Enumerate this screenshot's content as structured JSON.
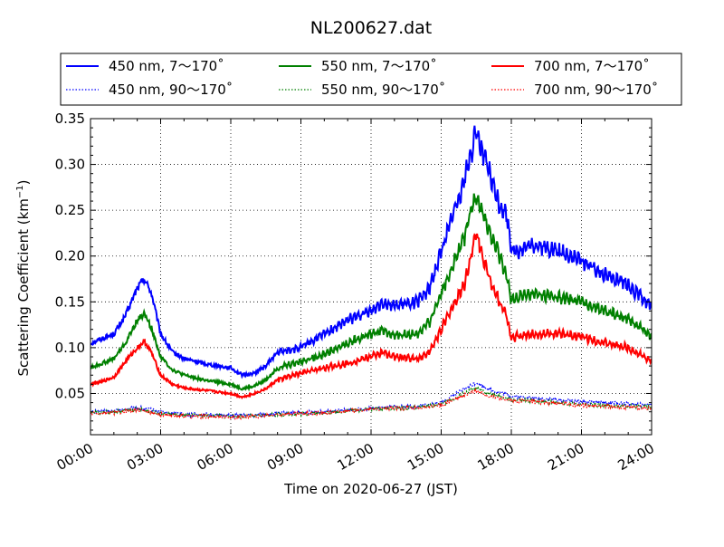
{
  "chart_data": {
    "type": "line",
    "title": "NL200627.dat",
    "xlabel": "Time on 2020-06-27 (JST)",
    "ylabel": "Scattering Coefficient (km",
    "ylabel_exp": "−1",
    "ylabel_close": ")",
    "xlim": [
      0,
      24
    ],
    "ylim": [
      0.005,
      0.35
    ],
    "x_ticks": [
      {
        "value": 0,
        "label": "00:00"
      },
      {
        "value": 3,
        "label": "03:00"
      },
      {
        "value": 6,
        "label": "06:00"
      },
      {
        "value": 9,
        "label": "09:00"
      },
      {
        "value": 12,
        "label": "12:00"
      },
      {
        "value": 15,
        "label": "15:00"
      },
      {
        "value": 18,
        "label": "18:00"
      },
      {
        "value": 21,
        "label": "21:00"
      },
      {
        "value": 24,
        "label": "24:00"
      }
    ],
    "y_ticks": [
      {
        "value": 0.05,
        "label": "0.05"
      },
      {
        "value": 0.1,
        "label": "0.10"
      },
      {
        "value": 0.15,
        "label": "0.15"
      },
      {
        "value": 0.2,
        "label": "0.20"
      },
      {
        "value": 0.25,
        "label": "0.25"
      },
      {
        "value": 0.3,
        "label": "0.30"
      },
      {
        "value": 0.35,
        "label": "0.35"
      }
    ],
    "grid": true,
    "legend_position": "top",
    "series": [
      {
        "name": "450 nm, 7～170˚",
        "color": "#0000ff",
        "style": "solid",
        "x": [
          0,
          0.5,
          1,
          1.5,
          2,
          2.3,
          2.6,
          3,
          3.5,
          4,
          5,
          6,
          6.5,
          7,
          7.5,
          8,
          9,
          10,
          11,
          12,
          12.5,
          13,
          14,
          14.5,
          15,
          15.5,
          16,
          16.5,
          17,
          17.5,
          17.8,
          18,
          18.2,
          19,
          20,
          21,
          22,
          23,
          24
        ],
        "values": [
          0.105,
          0.11,
          0.115,
          0.135,
          0.165,
          0.175,
          0.16,
          0.115,
          0.095,
          0.088,
          0.082,
          0.078,
          0.07,
          0.072,
          0.08,
          0.095,
          0.1,
          0.115,
          0.13,
          0.14,
          0.15,
          0.146,
          0.15,
          0.165,
          0.205,
          0.245,
          0.285,
          0.335,
          0.295,
          0.255,
          0.245,
          0.21,
          0.205,
          0.212,
          0.205,
          0.195,
          0.18,
          0.168,
          0.145
        ]
      },
      {
        "name": "550 nm, 7～170˚",
        "color": "#008000",
        "style": "solid",
        "x": [
          0,
          0.5,
          1,
          1.5,
          2,
          2.3,
          2.6,
          3,
          3.5,
          4,
          5,
          6,
          6.5,
          7,
          7.5,
          8,
          9,
          10,
          11,
          12,
          12.5,
          13,
          14,
          14.5,
          15,
          15.5,
          16,
          16.5,
          17,
          17.5,
          17.8,
          18,
          18.2,
          19,
          20,
          21,
          22,
          23,
          24
        ],
        "values": [
          0.078,
          0.083,
          0.088,
          0.105,
          0.13,
          0.137,
          0.122,
          0.09,
          0.076,
          0.07,
          0.064,
          0.06,
          0.055,
          0.058,
          0.065,
          0.078,
          0.085,
          0.093,
          0.105,
          0.115,
          0.12,
          0.113,
          0.115,
          0.128,
          0.16,
          0.19,
          0.222,
          0.268,
          0.23,
          0.2,
          0.178,
          0.15,
          0.155,
          0.158,
          0.155,
          0.15,
          0.14,
          0.132,
          0.112
        ]
      },
      {
        "name": "700 nm, 7～170˚",
        "color": "#ff0000",
        "style": "solid",
        "x": [
          0,
          0.5,
          1,
          1.5,
          2,
          2.3,
          2.6,
          3,
          3.5,
          4,
          5,
          6,
          6.5,
          7,
          7.5,
          8,
          9,
          10,
          11,
          12,
          12.5,
          13,
          14,
          14.5,
          15,
          15.5,
          16,
          16.5,
          17,
          17.5,
          17.8,
          18,
          18.2,
          19,
          20,
          21,
          22,
          23,
          24
        ],
        "values": [
          0.06,
          0.063,
          0.068,
          0.085,
          0.1,
          0.107,
          0.095,
          0.07,
          0.06,
          0.056,
          0.053,
          0.05,
          0.046,
          0.05,
          0.055,
          0.065,
          0.072,
          0.078,
          0.083,
          0.09,
          0.095,
          0.09,
          0.088,
          0.095,
          0.12,
          0.145,
          0.17,
          0.225,
          0.18,
          0.15,
          0.135,
          0.11,
          0.112,
          0.115,
          0.115,
          0.112,
          0.105,
          0.1,
          0.085
        ]
      },
      {
        "name": "450 nm, 90～170˚",
        "color": "#0000ff",
        "style": "dotted",
        "x": [
          0,
          1,
          2,
          3,
          4,
          5,
          6,
          7,
          8,
          9,
          10,
          11,
          12,
          13,
          14,
          15,
          16,
          16.5,
          17,
          18,
          19,
          20,
          21,
          22,
          23,
          24
        ],
        "values": [
          0.03,
          0.031,
          0.035,
          0.03,
          0.027,
          0.027,
          0.026,
          0.026,
          0.028,
          0.029,
          0.03,
          0.032,
          0.034,
          0.035,
          0.036,
          0.04,
          0.055,
          0.062,
          0.055,
          0.047,
          0.045,
          0.043,
          0.041,
          0.04,
          0.039,
          0.037
        ]
      },
      {
        "name": "550 nm, 90～170˚",
        "color": "#008000",
        "style": "dotted",
        "x": [
          0,
          1,
          2,
          3,
          4,
          5,
          6,
          7,
          8,
          9,
          10,
          11,
          12,
          13,
          14,
          15,
          16,
          16.5,
          17,
          18,
          19,
          20,
          21,
          22,
          23,
          24
        ],
        "values": [
          0.029,
          0.03,
          0.033,
          0.028,
          0.026,
          0.026,
          0.025,
          0.025,
          0.027,
          0.028,
          0.029,
          0.031,
          0.033,
          0.034,
          0.035,
          0.038,
          0.05,
          0.056,
          0.05,
          0.043,
          0.042,
          0.04,
          0.038,
          0.037,
          0.036,
          0.035
        ]
      },
      {
        "name": "700 nm, 90～170˚",
        "color": "#ff0000",
        "style": "dotted",
        "x": [
          0,
          1,
          2,
          3,
          4,
          5,
          6,
          7,
          8,
          9,
          10,
          11,
          12,
          13,
          14,
          15,
          16,
          16.5,
          17,
          18,
          19,
          20,
          21,
          22,
          23,
          24
        ],
        "values": [
          0.028,
          0.029,
          0.032,
          0.027,
          0.025,
          0.025,
          0.024,
          0.025,
          0.027,
          0.028,
          0.029,
          0.031,
          0.033,
          0.034,
          0.034,
          0.037,
          0.048,
          0.053,
          0.048,
          0.042,
          0.041,
          0.039,
          0.037,
          0.036,
          0.035,
          0.034
        ]
      }
    ]
  }
}
